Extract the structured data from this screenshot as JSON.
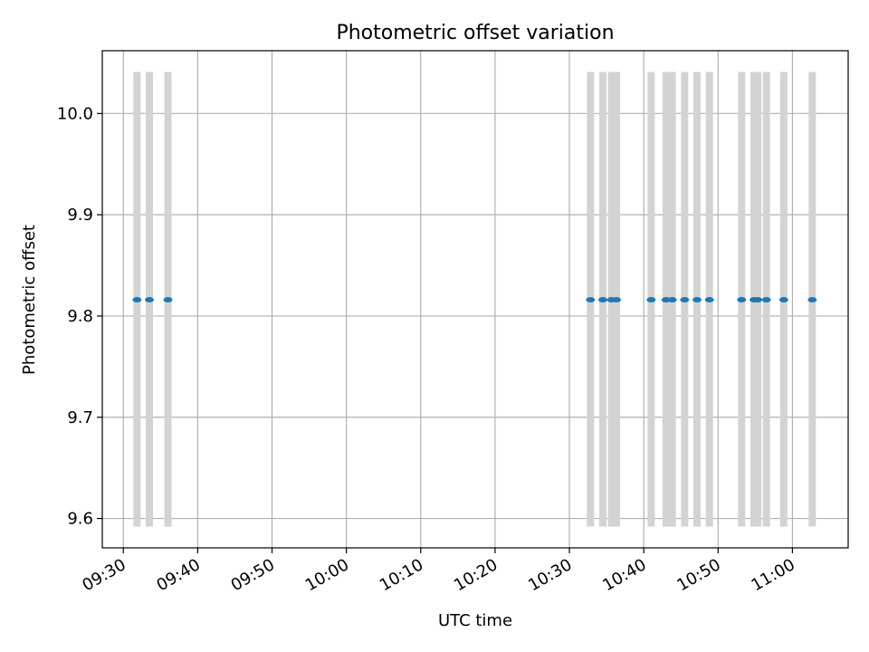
{
  "chart_data": {
    "type": "scatter",
    "title": "Photometric offset variation",
    "xlabel": "UTC time",
    "ylabel": "Photometric offset",
    "xlim": [
      "09:27:10",
      "11:07:30"
    ],
    "ylim": [
      9.571,
      10.062
    ],
    "x_ticks": [
      "09:30",
      "09:40",
      "09:50",
      "10:00",
      "10:10",
      "10:20",
      "10:30",
      "10:40",
      "10:50",
      "11:00"
    ],
    "y_ticks": [
      "9.6",
      "9.7",
      "9.8",
      "9.9",
      "10.0"
    ],
    "grid": true,
    "colors": {
      "points": "#1f77b4",
      "bands": "#d3d3d3",
      "grid": "#b0b0b0"
    },
    "band_range": [
      9.592,
      10.041
    ],
    "series": [
      {
        "x": [
          "09:31:50",
          "09:33:30",
          "09:36:00",
          "10:32:50",
          "10:34:30",
          "10:35:40",
          "10:36:20",
          "10:41:00",
          "10:43:00",
          "10:43:50",
          "10:45:30",
          "10:47:10",
          "10:48:50",
          "10:53:10",
          "10:54:50",
          "10:55:20",
          "10:56:30",
          "10:58:50",
          "11:02:40"
        ],
        "y": [
          9.816,
          9.816,
          9.816,
          9.816,
          9.816,
          9.816,
          9.816,
          9.816,
          9.816,
          9.816,
          9.816,
          9.816,
          9.816,
          9.816,
          9.816,
          9.816,
          9.816,
          9.816,
          9.816
        ]
      }
    ]
  }
}
